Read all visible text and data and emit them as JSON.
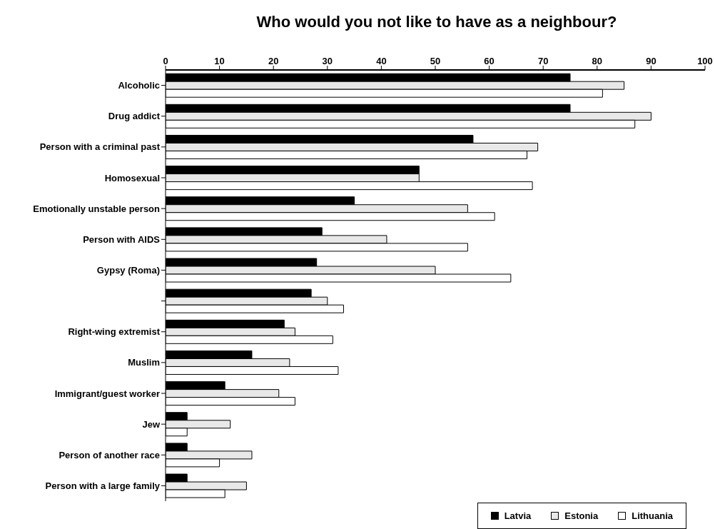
{
  "chart_data": {
    "type": "bar",
    "orientation": "horizontal",
    "title": "Who would you not like to have as a neighbour?",
    "categories": [
      "Alcoholic",
      "Drug addict",
      "Person with a criminal past",
      "Homosexual",
      "Emotionally unstable person",
      "Person with AIDS",
      "Gypsy (Roma)",
      null,
      "Right-wing extremist",
      "Muslim",
      "Immigrant/guest worker",
      "Jew",
      "Person of another race",
      "Person with a large family"
    ],
    "series": [
      {
        "name": "Latvia",
        "color": "#000000",
        "values": [
          75,
          75,
          57,
          47,
          35,
          29,
          28,
          27,
          22,
          16,
          11,
          4,
          4,
          4
        ]
      },
      {
        "name": "Estonia",
        "color": "#e8e8e8",
        "values": [
          85,
          90,
          69,
          47,
          56,
          41,
          50,
          30,
          24,
          23,
          21,
          12,
          16,
          15
        ]
      },
      {
        "name": "Lithuania",
        "color": "#ffffff",
        "values": [
          81,
          87,
          67,
          68,
          61,
          56,
          64,
          33,
          31,
          32,
          24,
          4,
          10,
          11
        ]
      }
    ],
    "xlim": [
      0,
      100
    ],
    "xticks": [
      0,
      10,
      20,
      30,
      40,
      50,
      60,
      70,
      80,
      90,
      100
    ],
    "grid": false,
    "legend": "bottom right"
  }
}
